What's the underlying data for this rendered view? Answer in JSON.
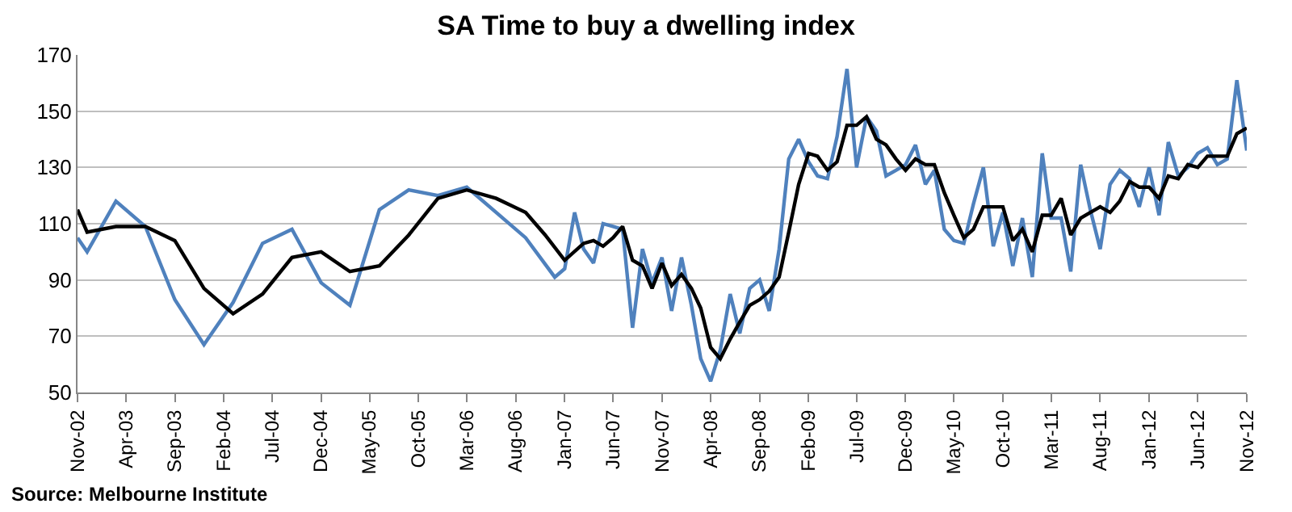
{
  "chart_data": {
    "type": "line",
    "title": "SA Time to buy a dwelling index",
    "annotations": [
      "Source: Melbourne Institute"
    ],
    "xlim": [
      "2002-11",
      "2012-11"
    ],
    "xticks": [
      {
        "value": "2002-11",
        "label": "Nov-02"
      },
      {
        "value": "2003-04",
        "label": "Apr-03"
      },
      {
        "value": "2003-09",
        "label": "Sep-03"
      },
      {
        "value": "2004-02",
        "label": "Feb-04"
      },
      {
        "value": "2004-07",
        "label": "Jul-04"
      },
      {
        "value": "2004-12",
        "label": "Dec-04"
      },
      {
        "value": "2005-05",
        "label": "May-05"
      },
      {
        "value": "2005-10",
        "label": "Oct-05"
      },
      {
        "value": "2006-03",
        "label": "Mar-06"
      },
      {
        "value": "2006-08",
        "label": "Aug-06"
      },
      {
        "value": "2007-01",
        "label": "Jan-07"
      },
      {
        "value": "2007-06",
        "label": "Jun-07"
      },
      {
        "value": "2007-11",
        "label": "Nov-07"
      },
      {
        "value": "2008-04",
        "label": "Apr-08"
      },
      {
        "value": "2008-09",
        "label": "Sep-08"
      },
      {
        "value": "2009-02",
        "label": "Feb-09"
      },
      {
        "value": "2009-07",
        "label": "Jul-09"
      },
      {
        "value": "2009-12",
        "label": "Dec-09"
      },
      {
        "value": "2010-05",
        "label": "May-10"
      },
      {
        "value": "2010-10",
        "label": "Oct-10"
      },
      {
        "value": "2011-03",
        "label": "Mar-11"
      },
      {
        "value": "2011-08",
        "label": "Aug-11"
      },
      {
        "value": "2012-01",
        "label": "Jan-12"
      },
      {
        "value": "2012-06",
        "label": "Jun-12"
      },
      {
        "value": "2012-11",
        "label": "Nov-12"
      }
    ],
    "ylim": [
      50,
      170
    ],
    "yticks": [
      50,
      70,
      90,
      110,
      130,
      150,
      170
    ],
    "grid": "y",
    "series": [
      {
        "color": "#4f81bd",
        "x": [
          "2002-11",
          "2002-12",
          "2003-03",
          "2003-06",
          "2003-09",
          "2003-12",
          "2004-03",
          "2004-06",
          "2004-09",
          "2004-12",
          "2005-03",
          "2005-06",
          "2005-09",
          "2005-12",
          "2006-03",
          "2006-09",
          "2006-12",
          "2007-01",
          "2007-02",
          "2007-03",
          "2007-04",
          "2007-05",
          "2007-06",
          "2007-07",
          "2007-08",
          "2007-09",
          "2007-10",
          "2007-11",
          "2007-12",
          "2008-01",
          "2008-02",
          "2008-03",
          "2008-04",
          "2008-05",
          "2008-06",
          "2008-07",
          "2008-08",
          "2008-09",
          "2008-10",
          "2008-11",
          "2008-12",
          "2009-01",
          "2009-02",
          "2009-03",
          "2009-04",
          "2009-05",
          "2009-06",
          "2009-07",
          "2009-08",
          "2009-09",
          "2009-10",
          "2009-11",
          "2009-12",
          "2010-01",
          "2010-02",
          "2010-03",
          "2010-04",
          "2010-05",
          "2010-06",
          "2010-07",
          "2010-08",
          "2010-09",
          "2010-10",
          "2010-11",
          "2010-12",
          "2011-01",
          "2011-02",
          "2011-03",
          "2011-04",
          "2011-05",
          "2011-06",
          "2011-07",
          "2011-08",
          "2011-09",
          "2011-10",
          "2011-11",
          "2011-12",
          "2012-01",
          "2012-02",
          "2012-03",
          "2012-04",
          "2012-05",
          "2012-06",
          "2012-07",
          "2012-08",
          "2012-09",
          "2012-10",
          "2012-11"
        ],
        "values": [
          105,
          100,
          118,
          109,
          83,
          67,
          82,
          103,
          108,
          89,
          81,
          115,
          122,
          120,
          123,
          105,
          91,
          94,
          114,
          101,
          96,
          110,
          109,
          108,
          73,
          101,
          89,
          98,
          79,
          98,
          81,
          62,
          54,
          65,
          85,
          71,
          87,
          90,
          79,
          101,
          133,
          140,
          132,
          127,
          126,
          141,
          165,
          130,
          148,
          143,
          127,
          129,
          131,
          138,
          124,
          129,
          108,
          104,
          103,
          117,
          130,
          102,
          114,
          95,
          112,
          91,
          135,
          112,
          112,
          93,
          131,
          115,
          101,
          124,
          129,
          126,
          116,
          130,
          113,
          139,
          127,
          130,
          135,
          137,
          131,
          133,
          161,
          136
        ]
      },
      {
        "color": "#000000",
        "x": [
          "2002-11",
          "2002-12",
          "2003-03",
          "2003-06",
          "2003-09",
          "2003-12",
          "2004-03",
          "2004-06",
          "2004-09",
          "2004-12",
          "2005-03",
          "2005-06",
          "2005-09",
          "2005-12",
          "2006-03",
          "2006-06",
          "2006-09",
          "2006-11",
          "2007-01",
          "2007-03",
          "2007-04",
          "2007-05",
          "2007-06",
          "2007-07",
          "2007-08",
          "2007-09",
          "2007-10",
          "2007-11",
          "2007-12",
          "2008-01",
          "2008-02",
          "2008-03",
          "2008-04",
          "2008-05",
          "2008-06",
          "2008-07",
          "2008-08",
          "2008-09",
          "2008-10",
          "2008-11",
          "2008-12",
          "2009-01",
          "2009-02",
          "2009-03",
          "2009-04",
          "2009-05",
          "2009-06",
          "2009-07",
          "2009-08",
          "2009-09",
          "2009-10",
          "2009-11",
          "2009-12",
          "2010-01",
          "2010-02",
          "2010-03",
          "2010-04",
          "2010-05",
          "2010-06",
          "2010-07",
          "2010-08",
          "2010-09",
          "2010-10",
          "2010-11",
          "2010-12",
          "2011-01",
          "2011-02",
          "2011-03",
          "2011-04",
          "2011-05",
          "2011-06",
          "2011-07",
          "2011-08",
          "2011-09",
          "2011-10",
          "2011-11",
          "2011-12",
          "2012-01",
          "2012-02",
          "2012-03",
          "2012-04",
          "2012-05",
          "2012-06",
          "2012-07",
          "2012-08",
          "2012-09",
          "2012-10",
          "2012-11"
        ],
        "values": [
          115,
          107,
          109,
          109,
          104,
          87,
          78,
          85,
          98,
          100,
          93,
          95,
          106,
          119,
          122,
          119,
          114,
          106,
          97,
          103,
          104,
          102,
          105,
          109,
          97,
          95,
          87,
          96,
          88,
          92,
          87,
          80,
          66,
          62,
          69,
          75,
          81,
          83,
          86,
          91,
          107,
          124,
          135,
          134,
          129,
          132,
          145,
          145,
          148,
          140,
          138,
          133,
          129,
          133,
          131,
          131,
          121,
          113,
          105,
          108,
          116,
          116,
          116,
          104,
          108,
          100,
          113,
          113,
          119,
          106,
          112,
          114,
          116,
          114,
          118,
          125,
          123,
          123,
          119,
          127,
          126,
          131,
          130,
          134,
          134,
          134,
          142,
          144
        ]
      }
    ]
  }
}
